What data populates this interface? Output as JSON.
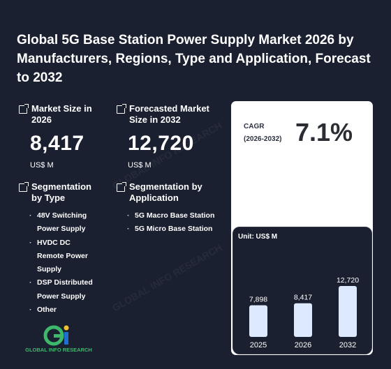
{
  "title": "Global 5G Base Station Power Supply Market 2026 by Manufacturers, Regions, Type and Application, Forecast to 2032",
  "market_size": {
    "label": "Market Size in 2026",
    "value": "8,417",
    "unit": "US$ M",
    "icon": "external-link-icon"
  },
  "forecast": {
    "label": "Forecasted Market Size in 2032",
    "value": "12,720",
    "unit": "US$ M",
    "icon": "external-link-icon"
  },
  "segmentation_type": {
    "label": "Segmentation by Type",
    "items": [
      "48V Switching Power Supply",
      "HVDC DC Remote Power Supply",
      "DSP Distributed Power Supply",
      "Other"
    ]
  },
  "segmentation_application": {
    "label": "Segmentation by Application",
    "items": [
      "5G Macro Base Station",
      "5G Micro Base Station"
    ]
  },
  "cagr": {
    "label": "CAGR",
    "period": "(2026-2032)",
    "value": "7.1%"
  },
  "logo": {
    "text": "GLOBAL INFO RESEARCH",
    "mark": "Gi"
  },
  "watermark": "GLOBAL INFO RESEARCH",
  "colors": {
    "background": "#1b2030",
    "bar": "#dde9ff",
    "panel": "#ffffff",
    "logo_green": "#3db86b",
    "logo_blue": "#1f6fd1"
  },
  "chart_data": {
    "type": "bar",
    "unit_label": "Unit: US$ M",
    "categories": [
      "2025",
      "2026",
      "2032"
    ],
    "values": [
      7898,
      8417,
      12720
    ],
    "data_labels": [
      "7,898",
      "8,417",
      "12,720"
    ]
  }
}
